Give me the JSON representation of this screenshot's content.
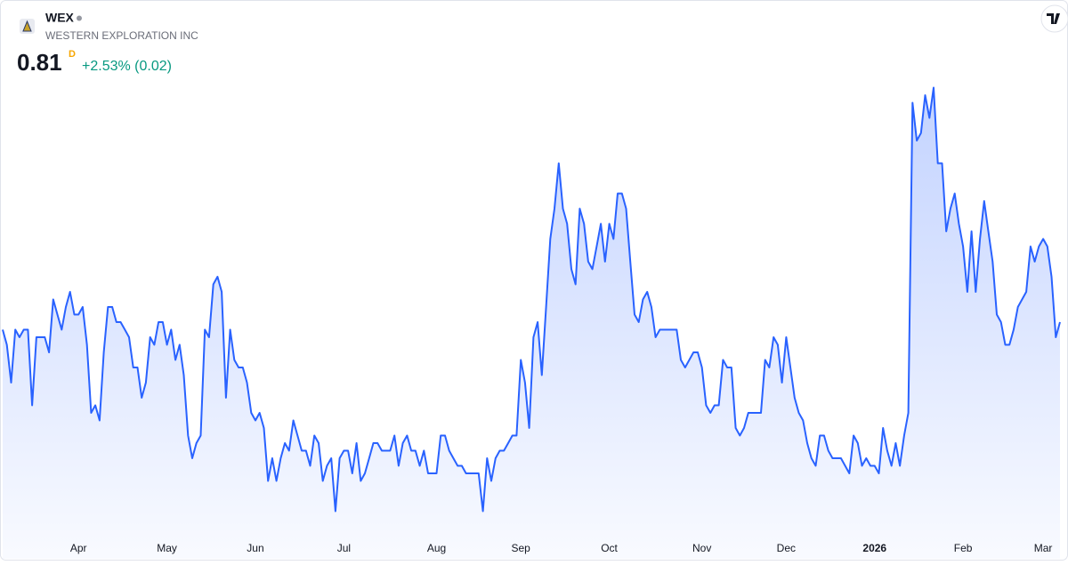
{
  "header": {
    "symbol": "WEX",
    "company": "WESTERN EXPLORATION INC",
    "price": "0.81",
    "interval": "D",
    "change": "+2.53% (0.02)"
  },
  "chart_data": {
    "type": "area",
    "color": "#2962ff",
    "xlim": [
      0,
      251
    ],
    "ylim": [
      0.53,
      1.13
    ],
    "xticks": [
      {
        "value": 18,
        "label": "Apr"
      },
      {
        "value": 39,
        "label": "May"
      },
      {
        "value": 60,
        "label": "Jun"
      },
      {
        "value": 81,
        "label": "Jul"
      },
      {
        "value": 103,
        "label": "Aug"
      },
      {
        "value": 123,
        "label": "Sep"
      },
      {
        "value": 144,
        "label": "Oct"
      },
      {
        "value": 166,
        "label": "Nov"
      },
      {
        "value": 186,
        "label": "Dec"
      },
      {
        "value": 207,
        "label": "2026",
        "bold": true
      },
      {
        "value": 228,
        "label": "Feb"
      },
      {
        "value": 247,
        "label": "Mar"
      }
    ],
    "values": [
      0.8,
      0.78,
      0.73,
      0.8,
      0.79,
      0.8,
      0.8,
      0.7,
      0.79,
      0.79,
      0.79,
      0.77,
      0.84,
      0.82,
      0.8,
      0.83,
      0.85,
      0.82,
      0.82,
      0.83,
      0.78,
      0.69,
      0.7,
      0.68,
      0.77,
      0.83,
      0.83,
      0.81,
      0.81,
      0.8,
      0.79,
      0.75,
      0.75,
      0.71,
      0.73,
      0.79,
      0.78,
      0.81,
      0.81,
      0.78,
      0.8,
      0.76,
      0.78,
      0.74,
      0.66,
      0.63,
      0.65,
      0.66,
      0.8,
      0.79,
      0.86,
      0.87,
      0.85,
      0.71,
      0.8,
      0.76,
      0.75,
      0.75,
      0.73,
      0.69,
      0.68,
      0.69,
      0.67,
      0.6,
      0.63,
      0.6,
      0.63,
      0.65,
      0.64,
      0.68,
      0.66,
      0.64,
      0.64,
      0.62,
      0.66,
      0.65,
      0.6,
      0.62,
      0.63,
      0.56,
      0.63,
      0.64,
      0.64,
      0.61,
      0.65,
      0.6,
      0.61,
      0.63,
      0.65,
      0.65,
      0.64,
      0.64,
      0.64,
      0.66,
      0.62,
      0.65,
      0.66,
      0.64,
      0.64,
      0.62,
      0.64,
      0.61,
      0.61,
      0.61,
      0.66,
      0.66,
      0.64,
      0.63,
      0.62,
      0.62,
      0.61,
      0.61,
      0.61,
      0.61,
      0.56,
      0.63,
      0.6,
      0.63,
      0.64,
      0.64,
      0.65,
      0.66,
      0.66,
      0.76,
      0.73,
      0.67,
      0.79,
      0.81,
      0.74,
      0.83,
      0.92,
      0.96,
      1.02,
      0.96,
      0.94,
      0.88,
      0.86,
      0.96,
      0.94,
      0.89,
      0.88,
      0.91,
      0.94,
      0.89,
      0.94,
      0.92,
      0.98,
      0.98,
      0.96,
      0.89,
      0.82,
      0.81,
      0.84,
      0.85,
      0.83,
      0.79,
      0.8,
      0.8,
      0.8,
      0.8,
      0.8,
      0.76,
      0.75,
      0.76,
      0.77,
      0.77,
      0.75,
      0.7,
      0.69,
      0.7,
      0.7,
      0.76,
      0.75,
      0.75,
      0.67,
      0.66,
      0.67,
      0.69,
      0.69,
      0.69,
      0.69,
      0.76,
      0.75,
      0.79,
      0.78,
      0.73,
      0.79,
      0.75,
      0.71,
      0.69,
      0.68,
      0.65,
      0.63,
      0.62,
      0.66,
      0.66,
      0.64,
      0.63,
      0.63,
      0.63,
      0.62,
      0.61,
      0.66,
      0.65,
      0.62,
      0.63,
      0.62,
      0.62,
      0.61,
      0.67,
      0.64,
      0.62,
      0.65,
      0.62,
      0.66,
      0.69,
      1.1,
      1.05,
      1.06,
      1.11,
      1.08,
      1.12,
      1.02,
      1.02,
      0.93,
      0.96,
      0.98,
      0.94,
      0.91,
      0.85,
      0.93,
      0.85,
      0.92,
      0.97,
      0.93,
      0.89,
      0.82,
      0.81,
      0.78,
      0.78,
      0.8,
      0.83,
      0.84,
      0.85,
      0.91,
      0.89,
      0.91,
      0.92,
      0.91,
      0.87,
      0.79,
      0.81
    ]
  }
}
